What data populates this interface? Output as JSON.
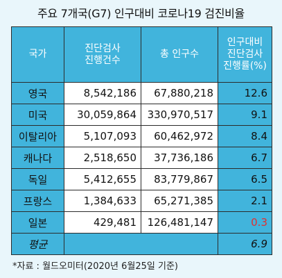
{
  "title": "주요 7개국(G7) 인구대비 코로나19 검진비율",
  "headers": {
    "country": "국가",
    "tests": "진단검사\n진행건수",
    "population": "총 인구수",
    "rate": "인구대비\n진단검사\n진행률(%)"
  },
  "rows": [
    {
      "country": "영국",
      "tests": "8,542,186",
      "population": "67,880,218",
      "rate": "12.6"
    },
    {
      "country": "미국",
      "tests": "30,059,864",
      "population": "330,970,517",
      "rate": "9.1"
    },
    {
      "country": "이탈리아",
      "tests": "5,107,093",
      "population": "60,462,972",
      "rate": "8.4"
    },
    {
      "country": "캐나다",
      "tests": "2,518,650",
      "population": "37,736,186",
      "rate": "6.7"
    },
    {
      "country": "독일",
      "tests": "5,412,655",
      "population": "83,779,867",
      "rate": "6.5"
    },
    {
      "country": "프랑스",
      "tests": "1,384,633",
      "population": "65,271,385",
      "rate": "2.1"
    },
    {
      "country": "일본",
      "tests": "429,481",
      "population": "126,481,147",
      "rate": "0.3"
    }
  ],
  "average": {
    "label": "평균",
    "rate": "6.9"
  },
  "highlight_color": "#e03030",
  "footnote": "*자료 : 월드오미터(2020년 6월25일 기준)"
}
